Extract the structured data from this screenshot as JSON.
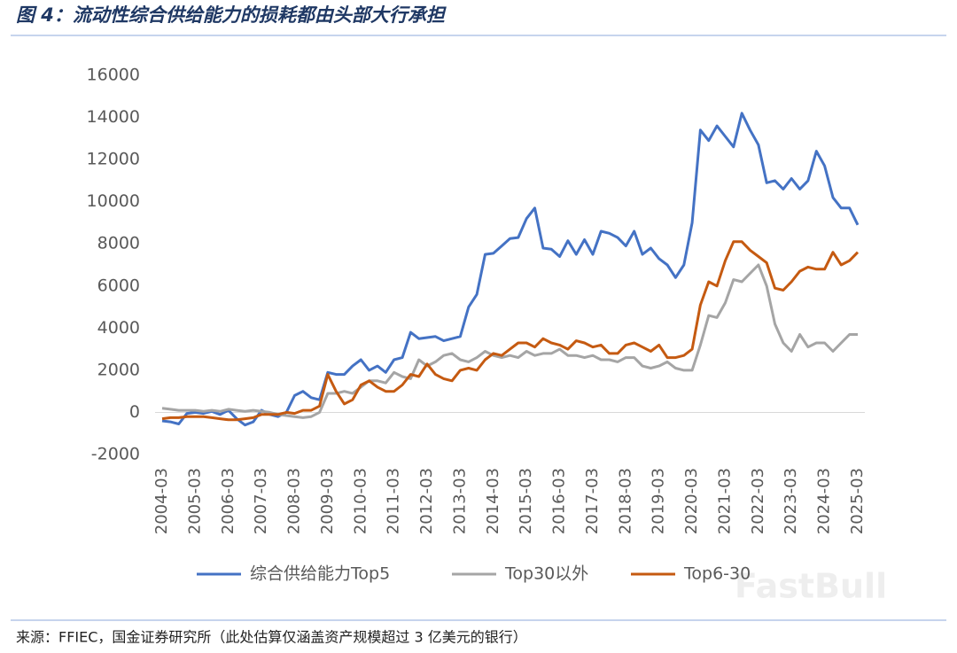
{
  "chart_data": {
    "type": "line",
    "title": "图 4：流动性综合供给能力的损耗都由头部大行承担",
    "source": "来源：FFIEC，国金证券研究所（此处估算仅涵盖资产规模超过 3 亿美元的银行）",
    "watermark": "FastBull",
    "categories": [
      "2004-03",
      null,
      null,
      null,
      "2005-03",
      null,
      null,
      null,
      "2006-03",
      null,
      null,
      null,
      "2007-03",
      null,
      null,
      null,
      "2008-03",
      null,
      null,
      null,
      "2009-03",
      null,
      null,
      null,
      "2010-03",
      null,
      null,
      null,
      "2011-03",
      null,
      null,
      null,
      "2012-03",
      null,
      null,
      null,
      "2013-03",
      null,
      null,
      null,
      "2014-03",
      null,
      null,
      null,
      "2015-03",
      null,
      null,
      null,
      "2016-03",
      null,
      null,
      null,
      "2017-03",
      null,
      null,
      null,
      "2018-03",
      null,
      null,
      null,
      "2019-03",
      null,
      null,
      null,
      "2020-03",
      null,
      null,
      null,
      "2021-03",
      null,
      null,
      null,
      "2022-03",
      null,
      null,
      null,
      "2023-03",
      null,
      null,
      null,
      "2024-03",
      null,
      null,
      null,
      "2025-03"
    ],
    "series": [
      {
        "name": "综合供给能力Top5",
        "color": "#4472c4",
        "values": [
          -400,
          -450,
          -550,
          -50,
          0,
          -50,
          50,
          -100,
          100,
          -300,
          -600,
          -450,
          100,
          -100,
          -200,
          0,
          800,
          1000,
          700,
          600,
          1900,
          1800,
          1800,
          2200,
          2500,
          2000,
          2200,
          1900,
          2500,
          2600,
          3800,
          3500,
          3550,
          3600,
          3400,
          3500,
          3600,
          5000,
          5600,
          7500,
          7550,
          7900,
          8250,
          8300,
          9200,
          9700,
          7800,
          7750,
          7400,
          8150,
          7500,
          8200,
          7500,
          8600,
          8500,
          8300,
          7900,
          8600,
          7500,
          7800,
          7300,
          7000,
          6400,
          7000,
          9000,
          13400,
          12900,
          13600,
          13100,
          12600,
          14200,
          13400,
          12700,
          10900,
          11000,
          10600,
          11100,
          10600,
          11000,
          12400,
          11700,
          10200,
          9700,
          9700,
          8900
        ]
      },
      {
        "name": "Top30以外",
        "color": "#a5a5a5",
        "values": [
          200,
          150,
          100,
          100,
          100,
          50,
          100,
          50,
          150,
          100,
          50,
          100,
          50,
          0,
          -100,
          -150,
          -200,
          -250,
          -200,
          0,
          900,
          900,
          1000,
          900,
          1200,
          1500,
          1500,
          1400,
          1900,
          1700,
          1600,
          2500,
          2200,
          2400,
          2700,
          2800,
          2500,
          2400,
          2600,
          2900,
          2700,
          2600,
          2700,
          2600,
          2900,
          2700,
          2800,
          2800,
          3000,
          2700,
          2700,
          2600,
          2700,
          2500,
          2500,
          2400,
          2600,
          2600,
          2200,
          2100,
          2200,
          2400,
          2100,
          2000,
          2000,
          3200,
          4600,
          4500,
          5200,
          6300,
          6200,
          6600,
          7000,
          6000,
          4200,
          3300,
          2900,
          3700,
          3100,
          3300,
          3300,
          2900,
          3300,
          3700,
          3700
        ]
      },
      {
        "name": "Top6-30",
        "color": "#c55a11",
        "values": [
          -300,
          -250,
          -250,
          -200,
          -200,
          -200,
          -250,
          -300,
          -350,
          -350,
          -300,
          -250,
          -100,
          -100,
          -100,
          0,
          -50,
          100,
          100,
          300,
          1800,
          1000,
          400,
          600,
          1300,
          1500,
          1200,
          1000,
          1000,
          1300,
          1800,
          1700,
          2300,
          1800,
          1600,
          1500,
          2000,
          2100,
          2000,
          2500,
          2800,
          2700,
          3000,
          3300,
          3300,
          3100,
          3500,
          3300,
          3200,
          3000,
          3400,
          3300,
          3100,
          3200,
          2800,
          2800,
          3200,
          3300,
          3100,
          2900,
          3200,
          2600,
          2600,
          2700,
          3000,
          5100,
          6200,
          6000,
          7200,
          8100,
          8100,
          7700,
          7400,
          7100,
          5900,
          5800,
          6200,
          6700,
          6900,
          6800,
          6800,
          7600,
          7000,
          7200,
          7600
        ]
      }
    ],
    "ylim": [
      -2000,
      16000
    ],
    "yticks": [
      -2000,
      0,
      2000,
      4000,
      6000,
      8000,
      10000,
      12000,
      14000,
      16000
    ],
    "grid": false,
    "legend": "bottom"
  }
}
